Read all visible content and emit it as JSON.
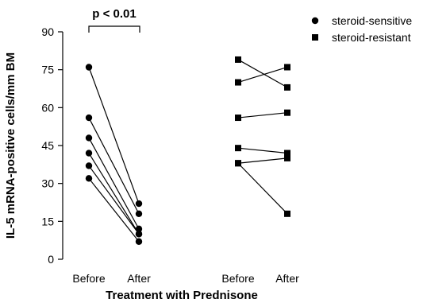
{
  "chart_data": {
    "type": "line",
    "title": "",
    "xlabel": "Treatment with Prednisone",
    "ylabel": "IL-5 mRNA-positive cells/mm BM",
    "ylim": [
      0,
      90
    ],
    "yticks": [
      0,
      15,
      30,
      45,
      60,
      75,
      90
    ],
    "grid": false,
    "legend_position": "top-right",
    "groups": [
      {
        "name": "steroid-sensitive",
        "marker": "circle",
        "x_labels": [
          "Before",
          "After"
        ],
        "pairs": [
          [
            76,
            22
          ],
          [
            56,
            18
          ],
          [
            48,
            12
          ],
          [
            42,
            10
          ],
          [
            37,
            10
          ],
          [
            32,
            7
          ]
        ]
      },
      {
        "name": "steroid-resistant",
        "marker": "square",
        "x_labels": [
          "Before",
          "After"
        ],
        "pairs": [
          [
            79,
            68
          ],
          [
            70,
            76
          ],
          [
            56,
            58
          ],
          [
            44,
            42
          ],
          [
            38,
            40
          ],
          [
            38,
            18
          ]
        ]
      }
    ],
    "annotations": [
      {
        "text": "p < 0.01",
        "group": "steroid-sensitive"
      }
    ]
  }
}
